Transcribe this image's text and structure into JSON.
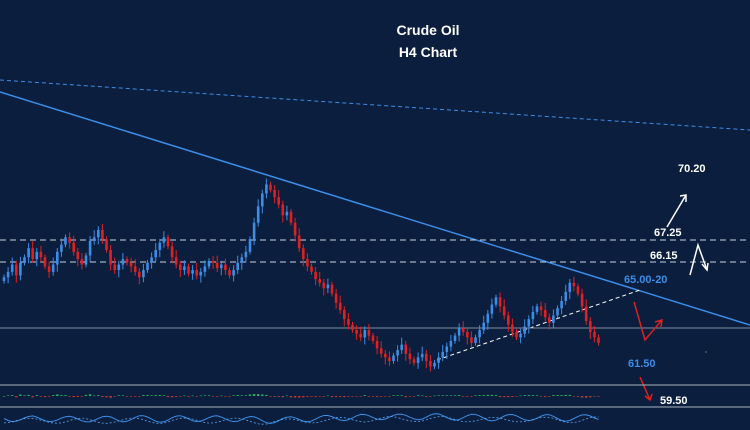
{
  "chart_data": {
    "type": "candlestick",
    "title": "Crude Oil",
    "subtitle": "H4 Chart",
    "levels": [
      {
        "label": "70.20",
        "value": 70.2,
        "color": "#ffffff",
        "line": false
      },
      {
        "label": "67.25",
        "value": 67.25,
        "color": "#ffffff",
        "line": "dashed"
      },
      {
        "label": "66.15",
        "value": 66.15,
        "color": "#ffffff",
        "line": "dashed"
      },
      {
        "label": "65.00-20",
        "value": 65.1,
        "color": "#3b8de8",
        "line": false
      },
      {
        "label": "61.50",
        "value": 61.5,
        "color": "#3b8de8",
        "line": "solid"
      },
      {
        "label": "59.50",
        "value": 59.5,
        "color": "#ffffff",
        "line": false
      }
    ],
    "ylim": [
      58.4,
      73.6
    ],
    "up_color": "#3b8de8",
    "down_color": "#e02020",
    "grid": false,
    "close": [
      65.2,
      65.5,
      65.9,
      65.3,
      66.0,
      66.3,
      66.8,
      66.2,
      66.6,
      66.3,
      65.8,
      65.5,
      65.9,
      66.6,
      67.0,
      67.4,
      67.1,
      66.6,
      66.2,
      65.9,
      66.4,
      67.2,
      67.4,
      67.8,
      67.3,
      66.7,
      65.9,
      65.6,
      65.9,
      66.2,
      66.0,
      65.8,
      65.5,
      65.2,
      65.6,
      66.0,
      66.3,
      66.7,
      67.1,
      67.4,
      66.9,
      66.3,
      65.9,
      65.6,
      65.8,
      65.4,
      65.6,
      65.3,
      65.5,
      65.8,
      66.1,
      66.0,
      65.7,
      65.9,
      65.6,
      65.3,
      65.6,
      66.0,
      66.3,
      66.6,
      67.3,
      68.2,
      69.1,
      69.8,
      70.3,
      70.0,
      69.6,
      69.2,
      68.6,
      68.8,
      68.2,
      67.5,
      66.8,
      66.2,
      65.8,
      65.5,
      65.1,
      64.9,
      64.6,
      64.8,
      64.3,
      63.8,
      63.4,
      62.9,
      62.6,
      62.3,
      62.1,
      61.9,
      62.3,
      62.0,
      61.7,
      61.3,
      61.0,
      60.8,
      60.6,
      60.9,
      61.2,
      61.5,
      61.0,
      60.7,
      60.5,
      60.8,
      61.0,
      60.6,
      60.3,
      60.5,
      60.8,
      61.1,
      61.4,
      61.7,
      62.0,
      62.4,
      62.2,
      61.9,
      61.6,
      61.9,
      62.3,
      62.7,
      63.2,
      63.7,
      64.1,
      63.6,
      63.1,
      62.6,
      62.2,
      61.9,
      62.1,
      62.5,
      62.9,
      63.3,
      63.6,
      63.4,
      63.0,
      62.7,
      63.1,
      63.5,
      63.9,
      64.4,
      64.9,
      64.7,
      64.3,
      63.6,
      62.8,
      62.2,
      61.9,
      61.6
    ]
  }
}
